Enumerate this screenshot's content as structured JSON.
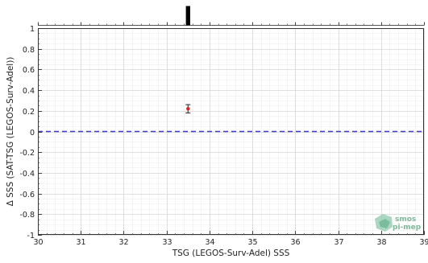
{
  "chart_data": {
    "type": "scatter",
    "xlabel": "TSG (LEGOS-Surv-Adel) SSS",
    "ylabel": "Δ SSS (SAT-TSG (LEGOS-Surv-Adel))",
    "xlim": [
      30,
      39
    ],
    "ylim": [
      -1,
      1
    ],
    "x_ticks": [
      "30",
      "31",
      "32",
      "33",
      "34",
      "35",
      "36",
      "37",
      "38",
      "39"
    ],
    "y_ticks": [
      "-1",
      "-0.8",
      "-0.6",
      "-0.4",
      "-0.2",
      "0",
      "0.2",
      "0.4",
      "0.6",
      "0.8",
      "1"
    ],
    "grid": true,
    "reference_line": {
      "y": 0,
      "style": "dashed",
      "color": "#3a3ad0"
    },
    "top_histogram": {
      "bins": [
        {
          "x_start": 33.45,
          "x_end": 33.55,
          "count": 1
        }
      ],
      "color": "#000000"
    },
    "series": [
      {
        "points": [
          {
            "x": 33.5,
            "y": 0.22,
            "err_low": 0.18,
            "err_high": 0.26
          }
        ],
        "marker_color": "#e02020",
        "error_color": "#222222"
      }
    ]
  },
  "logo": {
    "line1": "smos",
    "line2": "pi-mep"
  }
}
